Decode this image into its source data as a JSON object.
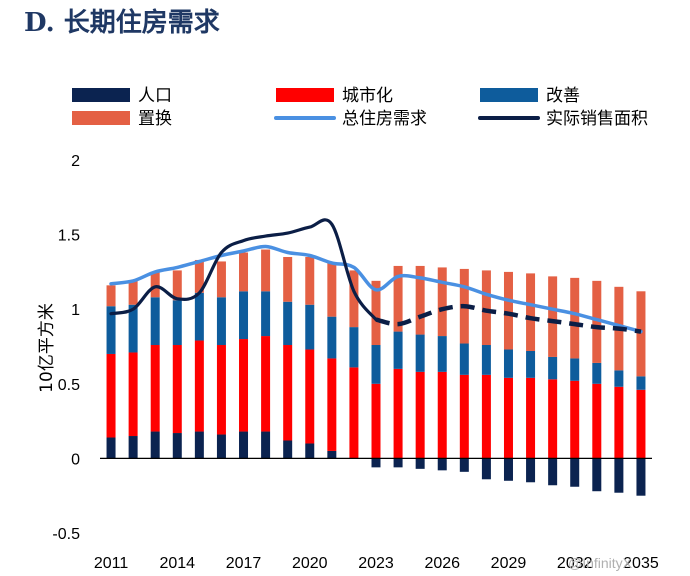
{
  "title": "D. 长期住房需求",
  "colors": {
    "title": "#1f3864",
    "population": "#0b2350",
    "urbanization": "#ff0000",
    "improvement": "#0e5c9c",
    "replacement": "#e46044",
    "total_demand": "#4a90e2",
    "actual_sales": "#0b1e46"
  },
  "watermark": "@InfinityX",
  "chart_data": {
    "type": "bar",
    "title": "D. 长期住房需求",
    "ylabel": "10亿平方米",
    "xlabel": "",
    "ylim": [
      -0.5,
      2
    ],
    "yticks": [
      "2",
      "1.5",
      "1",
      "0.5",
      "0",
      "-0.5"
    ],
    "ytick_values": [
      2,
      1.5,
      1,
      0.5,
      0,
      -0.5
    ],
    "xtick_labels": [
      "2011",
      "2014",
      "2017",
      "2020",
      "2023",
      "2026",
      "2029",
      "2032",
      "2035"
    ],
    "categories": [
      "2011",
      "2012",
      "2013",
      "2014",
      "2015",
      "2016",
      "2017",
      "2018",
      "2019",
      "2020",
      "2021",
      "2022",
      "2023",
      "2024",
      "2025",
      "2026",
      "2027",
      "2028",
      "2029",
      "2030",
      "2031",
      "2032",
      "2033",
      "2034",
      "2035"
    ],
    "legend_position": "top",
    "grid": false,
    "series": [
      {
        "name": "人口",
        "kind": "bar",
        "color_key": "population",
        "values": [
          0.14,
          0.15,
          0.18,
          0.17,
          0.18,
          0.16,
          0.18,
          0.18,
          0.12,
          0.1,
          0.05,
          0.0,
          -0.06,
          -0.06,
          -0.07,
          -0.08,
          -0.09,
          -0.14,
          -0.15,
          -0.16,
          -0.18,
          -0.19,
          -0.22,
          -0.23,
          -0.25
        ]
      },
      {
        "name": "城市化",
        "kind": "bar",
        "color_key": "urbanization",
        "values": [
          0.56,
          0.56,
          0.58,
          0.59,
          0.61,
          0.6,
          0.62,
          0.64,
          0.64,
          0.63,
          0.62,
          0.61,
          0.5,
          0.6,
          0.58,
          0.58,
          0.56,
          0.56,
          0.54,
          0.54,
          0.53,
          0.52,
          0.5,
          0.48,
          0.46
        ]
      },
      {
        "name": "改善",
        "kind": "bar",
        "color_key": "improvement",
        "values": [
          0.32,
          0.32,
          0.32,
          0.3,
          0.32,
          0.32,
          0.32,
          0.3,
          0.29,
          0.3,
          0.28,
          0.27,
          0.26,
          0.25,
          0.25,
          0.24,
          0.21,
          0.2,
          0.19,
          0.18,
          0.15,
          0.15,
          0.14,
          0.11,
          0.09
        ]
      },
      {
        "name": "置换",
        "kind": "bar",
        "color_key": "replacement",
        "values": [
          0.14,
          0.16,
          0.17,
          0.2,
          0.22,
          0.24,
          0.26,
          0.28,
          0.3,
          0.32,
          0.36,
          0.38,
          0.43,
          0.44,
          0.46,
          0.46,
          0.5,
          0.5,
          0.52,
          0.52,
          0.54,
          0.54,
          0.55,
          0.56,
          0.57
        ]
      },
      {
        "name": "总住房需求",
        "kind": "line",
        "style": "solid",
        "color_key": "total_demand",
        "values": [
          1.17,
          1.19,
          1.25,
          1.28,
          1.32,
          1.36,
          1.39,
          1.42,
          1.38,
          1.36,
          1.31,
          1.28,
          1.13,
          1.22,
          1.21,
          1.18,
          1.15,
          1.1,
          1.06,
          1.03,
          1.0,
          0.97,
          0.93,
          0.89,
          0.85
        ]
      },
      {
        "name": "实际销售面积",
        "kind": "line",
        "style": "solid-then-dashed",
        "color_key": "actual_sales",
        "values": [
          0.97,
          1.0,
          1.15,
          1.07,
          1.11,
          1.38,
          1.46,
          1.49,
          1.51,
          1.55,
          1.57,
          1.12,
          0.93,
          0.9,
          0.95,
          1.0,
          1.02,
          0.99,
          0.97,
          0.94,
          0.92,
          0.9,
          0.88,
          0.87,
          0.85
        ]
      }
    ],
    "legend": [
      {
        "label": "人口",
        "kind": "bar",
        "color_key": "population"
      },
      {
        "label": "城市化",
        "kind": "bar",
        "color_key": "urbanization"
      },
      {
        "label": "改善",
        "kind": "bar",
        "color_key": "improvement"
      },
      {
        "label": "置换",
        "kind": "bar",
        "color_key": "replacement"
      },
      {
        "label": "总住房需求",
        "kind": "line",
        "color_key": "total_demand"
      },
      {
        "label": "实际销售面积",
        "kind": "line",
        "color_key": "actual_sales"
      }
    ]
  }
}
